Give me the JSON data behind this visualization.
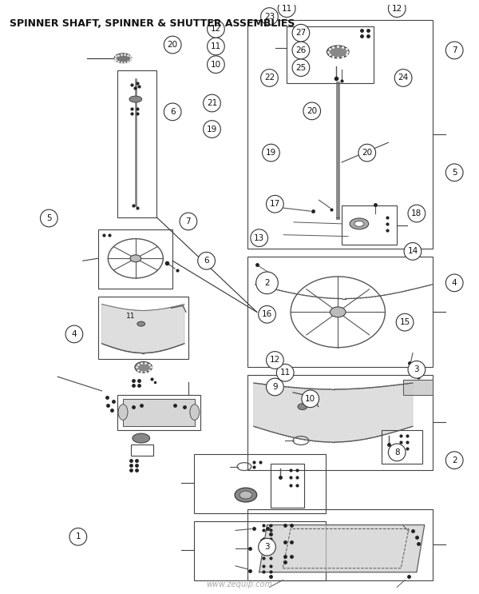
{
  "title": "SPINNER SHAFT, SPINNER & SHUTTER ASSEMBLIES",
  "bg_color": "#ffffff",
  "watermark": "www.zequip.com",
  "fig_width": 6.0,
  "fig_height": 7.43
}
